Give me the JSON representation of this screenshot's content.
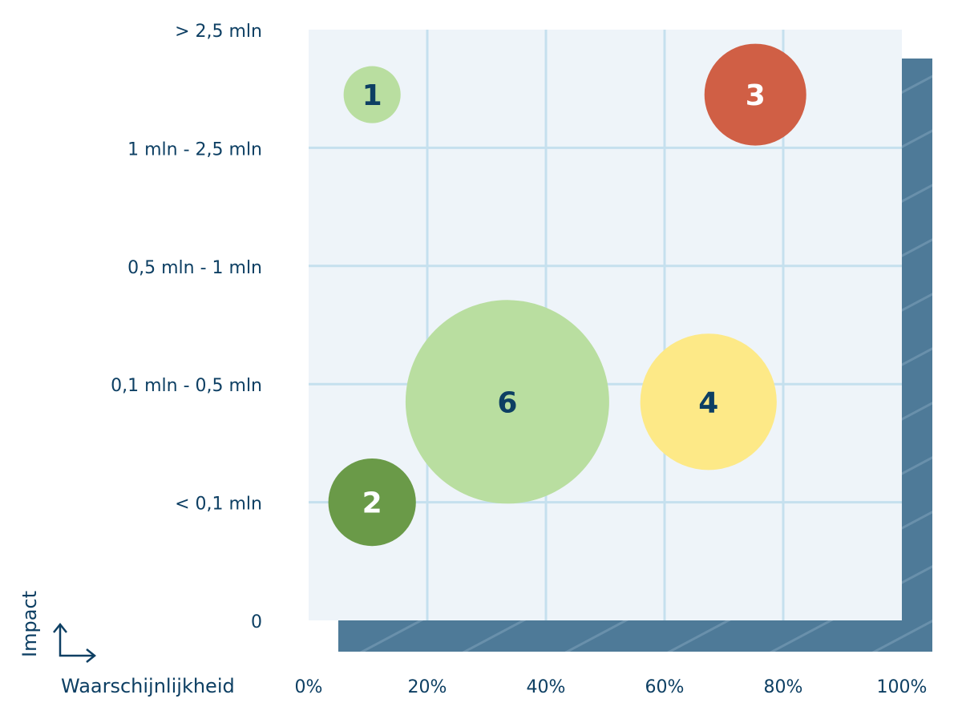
{
  "chart_data": {
    "type": "scatter",
    "subtype": "bubble",
    "xlabel": "Waarschijnlijkheid",
    "ylabel": "Impact",
    "xlim": [
      0,
      100
    ],
    "x_ticks": [
      "0%",
      "20%",
      "40%",
      "60%",
      "80%",
      "100%"
    ],
    "x_tick_values": [
      0,
      20,
      40,
      60,
      80,
      100
    ],
    "y_ticks": [
      "0",
      "< 0,1 mln",
      "0,1 mln - 0,5 mln",
      "0,5 mln - 1 mln",
      "1 mln - 2,5 mln",
      "> 2,5 mln"
    ],
    "ylim": [
      0,
      5
    ],
    "grid": true,
    "points": [
      {
        "label": "1",
        "x": 10.7,
        "y": 4.45,
        "size": 0.28,
        "color": "#b9dea0",
        "text_color": "#0d3f63"
      },
      {
        "label": "3",
        "x": 75.3,
        "y": 4.45,
        "size": 0.5,
        "color": "#d05f45",
        "text_color": "#ffffff"
      },
      {
        "label": "6",
        "x": 33.5,
        "y": 1.85,
        "size": 1.0,
        "color": "#b9dea0",
        "text_color": "#0d3f63"
      },
      {
        "label": "4",
        "x": 67.4,
        "y": 1.85,
        "size": 0.67,
        "color": "#fde987",
        "text_color": "#0d3f63"
      },
      {
        "label": "2",
        "x": 10.7,
        "y": 1.0,
        "size": 0.43,
        "color": "#6a9a48",
        "text_color": "#ffffff"
      }
    ],
    "colors": {
      "text": "#0d3f63",
      "plot_bg": "#eef4f9",
      "grid": "#c5e0ee",
      "shadow": "#4e7a98"
    }
  }
}
